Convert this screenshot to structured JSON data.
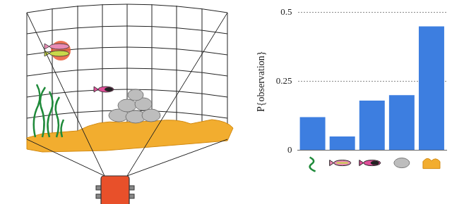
{
  "chart_data": {
    "type": "bar",
    "y_label": "P{observation}",
    "categories": [
      null,
      null,
      null,
      null,
      null
    ],
    "values": [
      0.12,
      0.05,
      0.18,
      0.2,
      0.45
    ],
    "color": "#3d7ee0",
    "ylim": [
      0,
      0.5
    ],
    "yticks": [
      0,
      0.25,
      0.5
    ],
    "grid": true
  }
}
